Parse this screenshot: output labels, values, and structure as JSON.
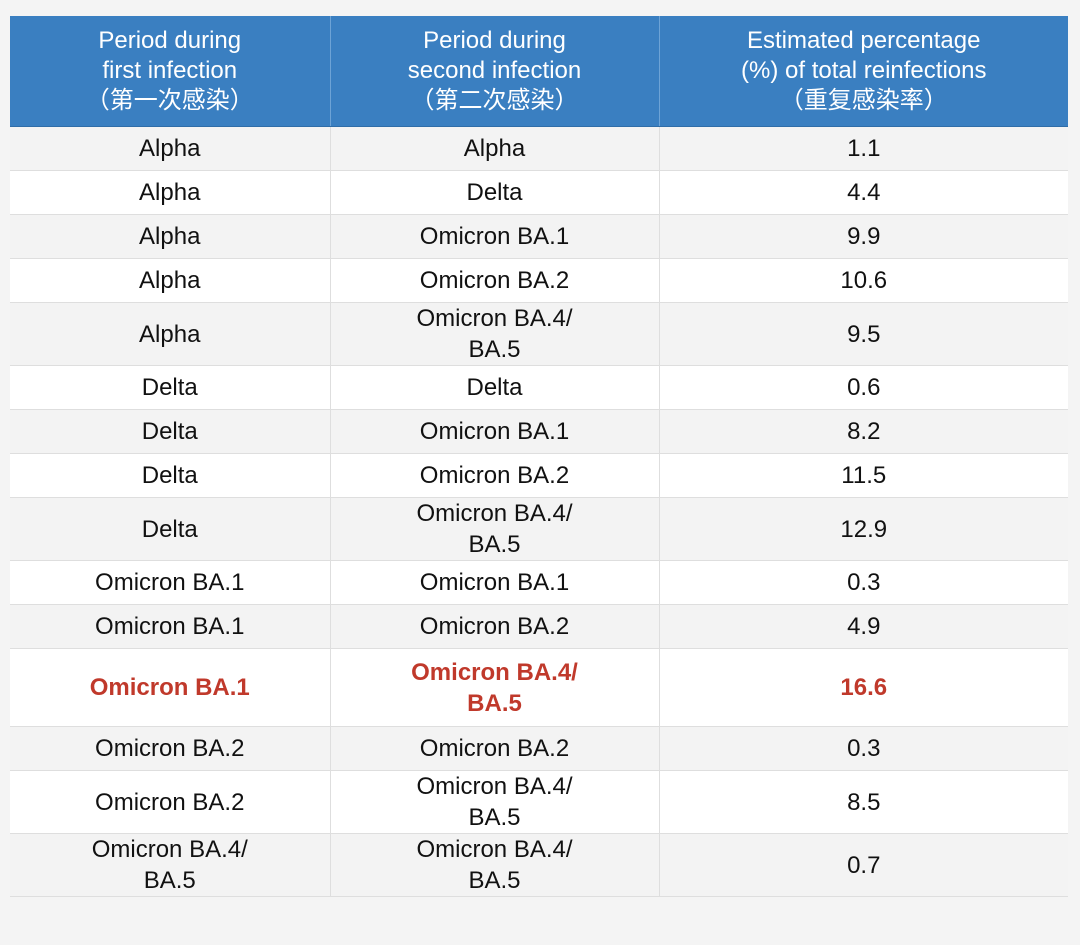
{
  "header": {
    "col1": [
      "Period during",
      "first infection",
      "（第一次感染）"
    ],
    "col2": [
      "Period during",
      "second infection",
      "（第二次感染）"
    ],
    "col3": [
      "Estimated percentage",
      "(%) of total reinfections",
      "（重复感染率）"
    ]
  },
  "rows": [
    {
      "first": [
        "Alpha"
      ],
      "second": [
        "Alpha"
      ],
      "pct": "1.1"
    },
    {
      "first": [
        "Alpha"
      ],
      "second": [
        "Delta"
      ],
      "pct": "4.4"
    },
    {
      "first": [
        "Alpha"
      ],
      "second": [
        "Omicron BA.1"
      ],
      "pct": "9.9"
    },
    {
      "first": [
        "Alpha"
      ],
      "second": [
        "Omicron BA.2"
      ],
      "pct": "10.6"
    },
    {
      "first": [
        "Alpha"
      ],
      "second": [
        "Omicron BA.4/",
        "BA.5"
      ],
      "pct": "9.5"
    },
    {
      "first": [
        "Delta"
      ],
      "second": [
        "Delta"
      ],
      "pct": "0.6"
    },
    {
      "first": [
        "Delta"
      ],
      "second": [
        "Omicron BA.1"
      ],
      "pct": "8.2"
    },
    {
      "first": [
        "Delta"
      ],
      "second": [
        "Omicron BA.2"
      ],
      "pct": "11.5"
    },
    {
      "first": [
        "Delta"
      ],
      "second": [
        "Omicron BA.4/",
        "BA.5"
      ],
      "pct": "12.9"
    },
    {
      "first": [
        "Omicron BA.1"
      ],
      "second": [
        "Omicron BA.1"
      ],
      "pct": "0.3"
    },
    {
      "first": [
        "Omicron BA.1"
      ],
      "second": [
        "Omicron BA.2"
      ],
      "pct": "4.9"
    },
    {
      "first": [
        "Omicron BA.1"
      ],
      "second": [
        "Omicron BA.4/",
        "BA.5"
      ],
      "pct": "16.6",
      "highlight": true
    },
    {
      "first": [
        "Omicron BA.2"
      ],
      "second": [
        "Omicron BA.2"
      ],
      "pct": "0.3"
    },
    {
      "first": [
        "Omicron BA.2"
      ],
      "second": [
        "Omicron BA.4/",
        "BA.5"
      ],
      "pct": "8.5"
    },
    {
      "first": [
        "Omicron BA.4/",
        "BA.5"
      ],
      "second": [
        "Omicron BA.4/",
        "BA.5"
      ],
      "pct": "0.7"
    }
  ],
  "colors": {
    "header_bg": "#3a7fc1",
    "highlight_text": "#c0392b"
  }
}
